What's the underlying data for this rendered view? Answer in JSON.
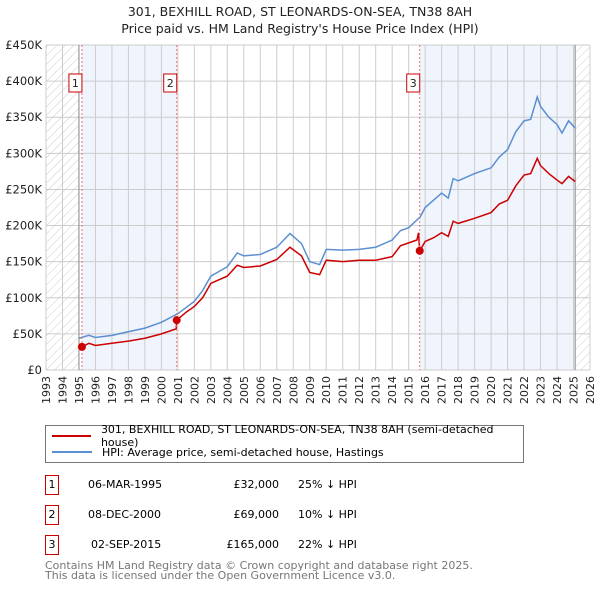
{
  "title": "301, BEXHILL ROAD, ST LEONARDS-ON-SEA, TN38 8AH",
  "subtitle": "Price paid vs. HM Land Registry's House Price Index (HPI)",
  "legend": {
    "red": "301, BEXHILL ROAD, ST LEONARDS-ON-SEA, TN38 8AH (semi-detached house)",
    "blue": "HPI: Average price, semi-detached house, Hastings"
  },
  "transactions": [
    {
      "n": "1",
      "date": "06-MAR-1995",
      "price": "£32,000",
      "hpi": "25% ↓ HPI"
    },
    {
      "n": "2",
      "date": "08-DEC-2000",
      "price": "£69,000",
      "hpi": "10% ↓ HPI"
    },
    {
      "n": "3",
      "date": "02-SEP-2015",
      "price": "£165,000",
      "hpi": "22% ↓ HPI"
    }
  ],
  "footer": [
    "Contains HM Land Registry data © Crown copyright and database right 2025.",
    "This data is licensed under the Open Government Licence v3.0."
  ],
  "chart_data": {
    "type": "line",
    "xlim": [
      1993,
      2026
    ],
    "ylim": [
      0,
      450000
    ],
    "yticks": [
      0,
      50000,
      100000,
      150000,
      200000,
      250000,
      300000,
      350000,
      400000,
      450000
    ],
    "ytick_labels": [
      "£0",
      "£50K",
      "£100K",
      "£150K",
      "£200K",
      "£250K",
      "£300K",
      "£350K",
      "£400K",
      "£450K"
    ],
    "xticks": [
      1993,
      1994,
      1995,
      1996,
      1997,
      1998,
      1999,
      2000,
      2001,
      2002,
      2003,
      2004,
      2005,
      2006,
      2007,
      2008,
      2009,
      2010,
      2011,
      2012,
      2013,
      2014,
      2015,
      2016,
      2017,
      2018,
      2019,
      2020,
      2021,
      2022,
      2023,
      2024,
      2025,
      2026
    ],
    "colors": {
      "red": "#cc0000",
      "blue": "#5b8fd0"
    },
    "sales": [
      {
        "x": 1995.18,
        "y": 32000,
        "label": "1"
      },
      {
        "x": 2000.93,
        "y": 69000,
        "label": "2"
      },
      {
        "x": 2015.67,
        "y": 165000,
        "label": "3"
      }
    ],
    "series": [
      {
        "name": "HPI",
        "color": "#5b8fd0",
        "points": [
          [
            1995,
            44000
          ],
          [
            1995.6,
            48000
          ],
          [
            1996,
            45000
          ],
          [
            1997,
            48000
          ],
          [
            1998,
            53000
          ],
          [
            1999,
            58000
          ],
          [
            2000,
            66000
          ],
          [
            2001,
            78000
          ],
          [
            2002,
            95000
          ],
          [
            2002.5,
            110000
          ],
          [
            2003,
            130000
          ],
          [
            2004,
            143000
          ],
          [
            2004.6,
            162000
          ],
          [
            2005,
            158000
          ],
          [
            2006,
            160000
          ],
          [
            2007,
            170000
          ],
          [
            2007.8,
            189000
          ],
          [
            2008.5,
            175000
          ],
          [
            2009,
            150000
          ],
          [
            2009.6,
            146000
          ],
          [
            2010,
            167000
          ],
          [
            2011,
            166000
          ],
          [
            2012,
            167000
          ],
          [
            2013,
            170000
          ],
          [
            2014,
            180000
          ],
          [
            2014.5,
            193000
          ],
          [
            2015,
            197000
          ],
          [
            2015.7,
            212000
          ],
          [
            2016,
            225000
          ],
          [
            2016.5,
            235000
          ],
          [
            2017,
            245000
          ],
          [
            2017.4,
            238000
          ],
          [
            2017.7,
            265000
          ],
          [
            2018,
            262000
          ],
          [
            2019,
            272000
          ],
          [
            2020,
            280000
          ],
          [
            2020.5,
            295000
          ],
          [
            2021,
            305000
          ],
          [
            2021.5,
            330000
          ],
          [
            2022,
            345000
          ],
          [
            2022.4,
            347000
          ],
          [
            2022.8,
            378000
          ],
          [
            2023,
            365000
          ],
          [
            2023.5,
            350000
          ],
          [
            2024,
            340000
          ],
          [
            2024.3,
            328000
          ],
          [
            2024.7,
            345000
          ],
          [
            2025.1,
            335000
          ]
        ]
      },
      {
        "name": "Price paid",
        "color": "#cc0000",
        "points": [
          [
            1995.18,
            32000
          ],
          [
            1995.6,
            37000
          ],
          [
            1996,
            34000
          ],
          [
            1997,
            37000
          ],
          [
            1998,
            40000
          ],
          [
            1999,
            44000
          ],
          [
            2000,
            50000
          ],
          [
            2000.9,
            57000
          ],
          [
            2000.93,
            69000
          ],
          [
            2001.5,
            80000
          ],
          [
            2002,
            88000
          ],
          [
            2002.5,
            100000
          ],
          [
            2003,
            120000
          ],
          [
            2004,
            130000
          ],
          [
            2004.6,
            145000
          ],
          [
            2005,
            142000
          ],
          [
            2006,
            144000
          ],
          [
            2007,
            153000
          ],
          [
            2007.8,
            170000
          ],
          [
            2008.5,
            158000
          ],
          [
            2009,
            135000
          ],
          [
            2009.6,
            132000
          ],
          [
            2010,
            152000
          ],
          [
            2011,
            150000
          ],
          [
            2012,
            152000
          ],
          [
            2013,
            152000
          ],
          [
            2014,
            157000
          ],
          [
            2014.5,
            172000
          ],
          [
            2015.5,
            180000
          ],
          [
            2015.6,
            190000
          ],
          [
            2015.67,
            165000
          ],
          [
            2016,
            178000
          ],
          [
            2016.5,
            183000
          ],
          [
            2017,
            190000
          ],
          [
            2017.4,
            185000
          ],
          [
            2017.7,
            206000
          ],
          [
            2018,
            203000
          ],
          [
            2019,
            210000
          ],
          [
            2020,
            218000
          ],
          [
            2020.5,
            230000
          ],
          [
            2021,
            235000
          ],
          [
            2021.5,
            255000
          ],
          [
            2022,
            270000
          ],
          [
            2022.4,
            272000
          ],
          [
            2022.8,
            293000
          ],
          [
            2023,
            283000
          ],
          [
            2023.5,
            272000
          ],
          [
            2024,
            263000
          ],
          [
            2024.3,
            258000
          ],
          [
            2024.7,
            268000
          ],
          [
            2025.1,
            261000
          ]
        ]
      }
    ]
  }
}
